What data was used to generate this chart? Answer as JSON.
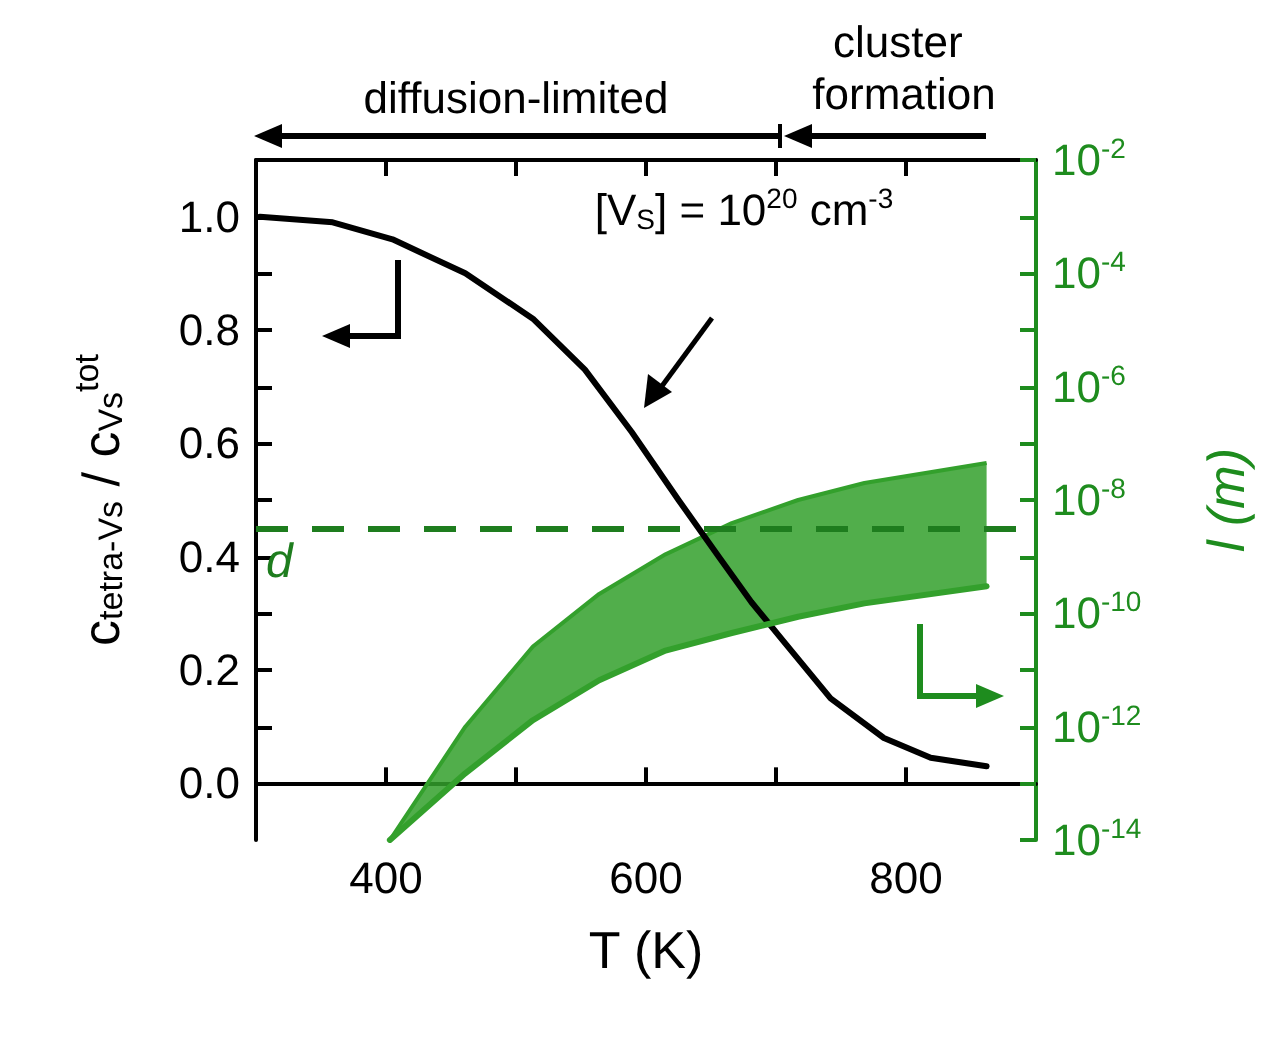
{
  "chart_data": {
    "type": "line",
    "xlabel": "T (K)",
    "ylabel": "c$_{tetra-Vs}$ / c$_{Vs}$$^{tot}$",
    "y2label": "l (m)",
    "xlim": [
      300,
      900
    ],
    "xticks": [
      400,
      {
        "value": 500,
        "label": null
      },
      600,
      {
        "value": 700,
        "label": null
      },
      800
    ],
    "ylim": [
      -0.1,
      1.1
    ],
    "yticks": [
      {
        "value": 0,
        "label": "0.0"
      },
      {
        "value": 0.1,
        "label": null
      },
      0.2,
      {
        "value": 0.3,
        "label": null
      },
      0.4,
      {
        "value": 0.5,
        "label": null
      },
      0.6,
      {
        "value": 0.7,
        "label": null
      },
      0.8,
      {
        "value": 0.9,
        "label": null
      },
      {
        "value": 1,
        "label": "1.0"
      }
    ],
    "y2lim": [
      1e-14,
      0.01
    ],
    "log": "y2",
    "y2ticks": [
      {
        "value": 1e-14,
        "label": "10$^{-14}$"
      },
      {
        "value": 1e-13,
        "label": null
      },
      {
        "value": 1e-12,
        "label": "10$^{-12}$"
      },
      {
        "value": 1e-11,
        "label": null
      },
      {
        "value": 1e-10,
        "label": "10$^{-10}$"
      },
      {
        "value": 1e-09,
        "label": null
      },
      {
        "value": 1e-08,
        "label": "10$^{-8}$"
      },
      {
        "value": 1e-07,
        "label": null
      },
      {
        "value": 1e-06,
        "label": "10$^{-6}$"
      },
      {
        "value": 1e-05,
        "label": null
      },
      {
        "value": 0.0001,
        "label": "10$^{-4}$"
      },
      {
        "value": 0.001,
        "label": null
      },
      {
        "value": 0.01,
        "label": "10$^{-2}$"
      }
    ],
    "marker": "none",
    "series": [
      {
        "type": "line",
        "color": "#000000",
        "x": [
          303,
          359,
          405,
          461,
          513,
          553,
          589,
          625,
          656,
          681,
          706,
          742,
          783,
          819,
          862
        ],
        "values": [
          1.0,
          0.99,
          0.96,
          0.9,
          0.82,
          0.73,
          0.62,
          0.5,
          0.4,
          0.32,
          0.25,
          0.15,
          0.08,
          0.045,
          0.03
        ]
      },
      {
        "type": "line",
        "axis": "y2",
        "color": "#33a02c",
        "x": [
          403,
          461,
          513,
          564,
          615,
          666,
          717,
          768,
          862
        ],
        "values": [
          1e-14,
          1.5e-13,
          1.3e-12,
          6.6e-12,
          2.2e-11,
          4.5e-11,
          8.7e-11,
          1.5e-10,
          3e-10
        ]
      },
      {
        "type": "area",
        "axis": "y2",
        "color": "#33a02c",
        "x": [
          403,
          461,
          513,
          564,
          615,
          666,
          717,
          768,
          862
        ],
        "values": [
          1e-14,
          1e-12,
          2.6e-11,
          2.2e-10,
          1.1e-09,
          3.9e-09,
          1e-08,
          2e-08,
          4.5e-08
        ]
      }
    ],
    "ref_lines": [
      {
        "axis": "y",
        "value": 0.45,
        "label": "d",
        "color": "#1e7d1e",
        "line_style": "dashed"
      }
    ],
    "annotations": [
      "[V$_{S}$] = 10$^{20}$ cm$^{-3}$",
      "diffusion-limited",
      "cluster formation"
    ]
  }
}
